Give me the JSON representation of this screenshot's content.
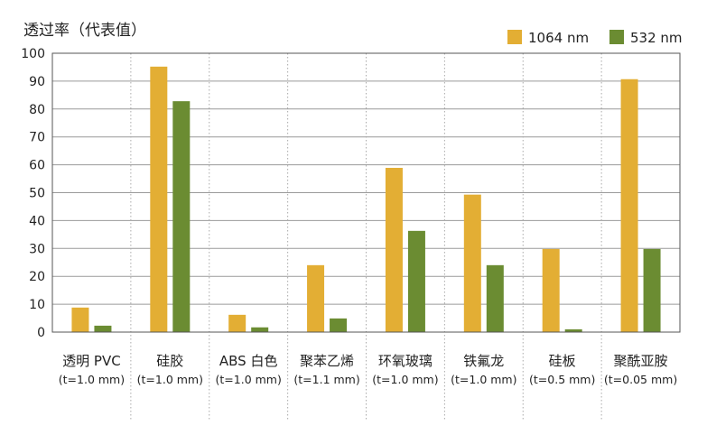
{
  "chart_data": {
    "type": "bar",
    "ylabel": "透过率（代表值）",
    "ylim": [
      0,
      100
    ],
    "yticks": [
      0,
      10,
      20,
      30,
      40,
      50,
      60,
      70,
      80,
      90,
      100
    ],
    "grid": true,
    "legend_position": "top-right",
    "categories": [
      {
        "name": "透明 PVC",
        "note": "(t=1.0 mm)"
      },
      {
        "name": "硅胶",
        "note": "(t=1.0 mm)"
      },
      {
        "name": "ABS 白色",
        "note": "(t=1.0 mm)"
      },
      {
        "name": "聚苯乙烯",
        "note": "(t=1.1 mm)"
      },
      {
        "name": "环氧玻璃",
        "note": "(t=1.0 mm)"
      },
      {
        "name": "铁氟龙",
        "note": "(t=1.0 mm)"
      },
      {
        "name": "硅板",
        "note": "(t=0.5 mm)"
      },
      {
        "name": "聚酰亚胺",
        "note": "(t=0.05 mm)"
      }
    ],
    "series": [
      {
        "name": "1064 nm",
        "color": "#e3ae34",
        "values": [
          8.8,
          95.2,
          6.2,
          24.0,
          58.9,
          49.3,
          29.8,
          90.7
        ]
      },
      {
        "name": "532 nm",
        "color": "#6b8c32",
        "values": [
          2.3,
          82.8,
          1.7,
          4.9,
          36.3,
          24.0,
          1.0,
          29.8
        ]
      }
    ]
  }
}
